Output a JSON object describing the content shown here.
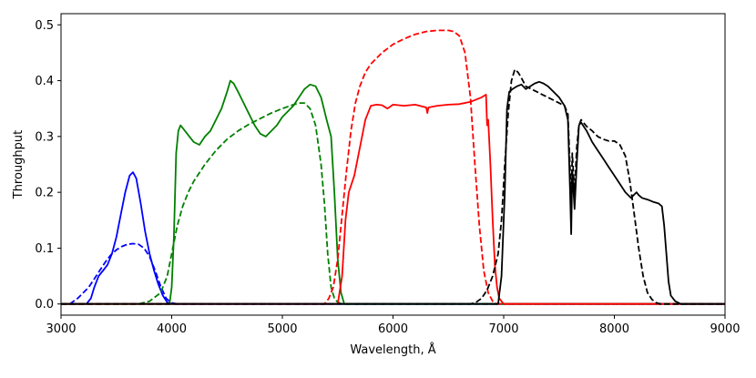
{
  "chart_data": {
    "type": "line",
    "title": "",
    "xlabel": "Wavelength, Å",
    "ylabel": "Throughput",
    "xlim": [
      3000,
      9000
    ],
    "ylim": [
      -0.02,
      0.52
    ],
    "xticks": [
      3000,
      4000,
      5000,
      6000,
      7000,
      8000,
      9000
    ],
    "xtick_labels": [
      "3000",
      "4000",
      "5000",
      "6000",
      "7000",
      "8000",
      "9000"
    ],
    "yticks": [
      0.0,
      0.1,
      0.2,
      0.3,
      0.4,
      0.5
    ],
    "ytick_labels": [
      "0.0",
      "0.1",
      "0.2",
      "0.3",
      "0.4",
      "0.5"
    ],
    "grid": false,
    "legend": "none",
    "series": [
      {
        "name": "blue-solid",
        "color": "#0000ff",
        "style": "solid",
        "x": [
          3000,
          3230,
          3270,
          3300,
          3340,
          3380,
          3420,
          3460,
          3500,
          3540,
          3580,
          3620,
          3650,
          3680,
          3720,
          3760,
          3800,
          3840,
          3880,
          3920,
          3960,
          4000,
          9000
        ],
        "y": [
          0.0,
          0.0,
          0.01,
          0.03,
          0.05,
          0.06,
          0.07,
          0.09,
          0.12,
          0.16,
          0.2,
          0.23,
          0.236,
          0.225,
          0.18,
          0.13,
          0.09,
          0.06,
          0.035,
          0.015,
          0.003,
          0.0,
          0.0
        ]
      },
      {
        "name": "blue-dashed",
        "color": "#0000ff",
        "style": "dashed",
        "x": [
          3000,
          3080,
          3150,
          3200,
          3250,
          3300,
          3350,
          3400,
          3450,
          3500,
          3550,
          3600,
          3650,
          3700,
          3750,
          3800,
          3850,
          3900,
          3950,
          4000,
          4050,
          9000
        ],
        "y": [
          0.0,
          0.0,
          0.01,
          0.02,
          0.03,
          0.045,
          0.06,
          0.075,
          0.088,
          0.097,
          0.103,
          0.107,
          0.108,
          0.107,
          0.1,
          0.085,
          0.06,
          0.032,
          0.01,
          0.002,
          0.0,
          0.0
        ]
      },
      {
        "name": "green-solid",
        "color": "#008000",
        "style": "solid",
        "x": [
          3000,
          3980,
          4000,
          4020,
          4040,
          4060,
          4080,
          4120,
          4160,
          4200,
          4250,
          4300,
          4350,
          4400,
          4450,
          4500,
          4530,
          4560,
          4600,
          4650,
          4700,
          4750,
          4800,
          4850,
          4900,
          4950,
          5000,
          5050,
          5100,
          5150,
          5200,
          5250,
          5300,
          5350,
          5400,
          5440,
          5470,
          5500,
          5530,
          5560,
          9000
        ],
        "y": [
          0.0,
          0.0,
          0.03,
          0.12,
          0.27,
          0.31,
          0.32,
          0.31,
          0.3,
          0.29,
          0.285,
          0.3,
          0.31,
          0.33,
          0.35,
          0.38,
          0.4,
          0.395,
          0.38,
          0.36,
          0.34,
          0.32,
          0.305,
          0.3,
          0.31,
          0.32,
          0.335,
          0.345,
          0.355,
          0.37,
          0.385,
          0.393,
          0.39,
          0.37,
          0.33,
          0.3,
          0.2,
          0.08,
          0.02,
          0.0,
          0.0
        ]
      },
      {
        "name": "green-dashed",
        "color": "#008000",
        "style": "dashed",
        "x": [
          3000,
          3700,
          3800,
          3900,
          3960,
          4000,
          4050,
          4100,
          4150,
          4200,
          4300,
          4400,
          4500,
          4600,
          4700,
          4800,
          4900,
          5000,
          5100,
          5150,
          5200,
          5250,
          5300,
          5350,
          5380,
          5410,
          5440,
          5470,
          5500,
          5540,
          9000
        ],
        "y": [
          0.0,
          0.0,
          0.005,
          0.02,
          0.05,
          0.09,
          0.14,
          0.175,
          0.2,
          0.22,
          0.25,
          0.275,
          0.295,
          0.31,
          0.322,
          0.332,
          0.342,
          0.35,
          0.357,
          0.36,
          0.36,
          0.35,
          0.32,
          0.25,
          0.18,
          0.09,
          0.03,
          0.01,
          0.003,
          0.0,
          0.0
        ]
      },
      {
        "name": "red-solid",
        "color": "#ff0000",
        "style": "solid",
        "x": [
          3000,
          5500,
          5540,
          5570,
          5600,
          5650,
          5700,
          5750,
          5800,
          5850,
          5900,
          5950,
          6000,
          6100,
          6200,
          6300,
          6310,
          6320,
          6400,
          6500,
          6600,
          6700,
          6800,
          6840,
          6850,
          6860,
          6880,
          6900,
          6920,
          6940,
          6960,
          7000,
          9000
        ],
        "y": [
          0.0,
          0.0,
          0.05,
          0.15,
          0.2,
          0.23,
          0.28,
          0.33,
          0.355,
          0.357,
          0.356,
          0.35,
          0.357,
          0.355,
          0.357,
          0.352,
          0.342,
          0.352,
          0.355,
          0.357,
          0.358,
          0.362,
          0.37,
          0.375,
          0.32,
          0.33,
          0.25,
          0.15,
          0.07,
          0.03,
          0.01,
          0.0,
          0.0
        ]
      },
      {
        "name": "red-dashed",
        "color": "#ff0000",
        "style": "dashed",
        "x": [
          3000,
          5380,
          5420,
          5460,
          5500,
          5540,
          5580,
          5620,
          5660,
          5700,
          5750,
          5800,
          5900,
          6000,
          6100,
          6200,
          6300,
          6400,
          6500,
          6550,
          6600,
          6650,
          6700,
          6740,
          6780,
          6820,
          6860,
          6900,
          6940,
          9000
        ],
        "y": [
          0.0,
          0.0,
          0.01,
          0.03,
          0.08,
          0.16,
          0.24,
          0.31,
          0.36,
          0.39,
          0.415,
          0.43,
          0.45,
          0.465,
          0.475,
          0.483,
          0.488,
          0.49,
          0.49,
          0.488,
          0.48,
          0.45,
          0.37,
          0.25,
          0.14,
          0.06,
          0.02,
          0.005,
          0.0,
          0.0
        ]
      },
      {
        "name": "black-solid",
        "color": "#000000",
        "style": "solid",
        "x": [
          3000,
          6950,
          6980,
          7010,
          7030,
          7050,
          7080,
          7120,
          7160,
          7200,
          7240,
          7280,
          7320,
          7360,
          7400,
          7450,
          7500,
          7550,
          7580,
          7600,
          7610,
          7620,
          7640,
          7660,
          7680,
          7700,
          7750,
          7800,
          7850,
          7900,
          7950,
          8000,
          8050,
          8100,
          8150,
          8200,
          8220,
          8250,
          8300,
          8350,
          8400,
          8430,
          8450,
          8470,
          8490,
          8510,
          8550,
          8600,
          8650,
          9000
        ],
        "y": [
          0.0,
          0.0,
          0.05,
          0.2,
          0.35,
          0.38,
          0.385,
          0.39,
          0.393,
          0.385,
          0.39,
          0.395,
          0.398,
          0.395,
          0.39,
          0.38,
          0.37,
          0.355,
          0.33,
          0.2,
          0.125,
          0.24,
          0.17,
          0.25,
          0.32,
          0.325,
          0.31,
          0.29,
          0.275,
          0.26,
          0.245,
          0.23,
          0.215,
          0.2,
          0.19,
          0.2,
          0.195,
          0.19,
          0.187,
          0.183,
          0.18,
          0.175,
          0.14,
          0.09,
          0.04,
          0.015,
          0.005,
          0.0,
          0.0,
          0.0
        ]
      },
      {
        "name": "black-dashed",
        "color": "#000000",
        "style": "dashed",
        "x": [
          3000,
          6700,
          6750,
          6800,
          6850,
          6900,
          6950,
          6980,
          7010,
          7040,
          7070,
          7100,
          7130,
          7160,
          7200,
          7250,
          7300,
          7350,
          7400,
          7450,
          7500,
          7550,
          7580,
          7600,
          7610,
          7620,
          7640,
          7660,
          7680,
          7700,
          7750,
          7800,
          7850,
          7900,
          7950,
          8000,
          8050,
          8100,
          8140,
          8180,
          8220,
          8260,
          8300,
          8340,
          8380,
          8420,
          9000
        ],
        "y": [
          0.0,
          0.0,
          0.003,
          0.01,
          0.025,
          0.05,
          0.09,
          0.15,
          0.25,
          0.34,
          0.4,
          0.42,
          0.415,
          0.405,
          0.39,
          0.385,
          0.38,
          0.375,
          0.37,
          0.365,
          0.36,
          0.355,
          0.34,
          0.24,
          0.17,
          0.27,
          0.2,
          0.28,
          0.32,
          0.33,
          0.318,
          0.31,
          0.3,
          0.295,
          0.292,
          0.292,
          0.285,
          0.265,
          0.22,
          0.16,
          0.1,
          0.05,
          0.02,
          0.008,
          0.002,
          0.0,
          0.0
        ]
      }
    ]
  }
}
